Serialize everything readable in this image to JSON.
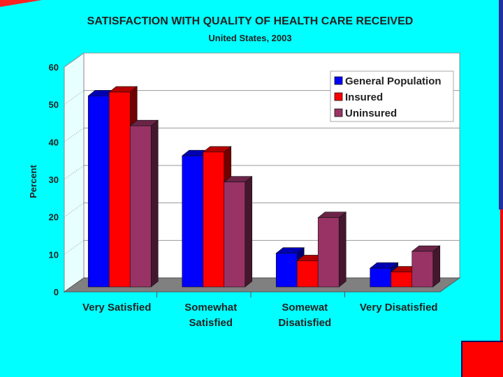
{
  "chart_data": {
    "type": "bar",
    "title": "SATISFACTION WITH QUALITY OF HEALTH CARE RECEIVED",
    "subtitle": "United States, 2003",
    "xlabel": "",
    "ylabel": "Percent",
    "ylim": [
      0,
      60
    ],
    "yticks": [
      "0",
      "10",
      "20",
      "30",
      "40",
      "50",
      "60"
    ],
    "categories": [
      [
        "Very Satisfied"
      ],
      [
        "Somewhat",
        "Satisfied"
      ],
      [
        "Somewat",
        "Disatisfied"
      ],
      [
        "Very Disatisfied"
      ]
    ],
    "series": [
      {
        "name": "General Population",
        "values": [
          51,
          35,
          9,
          5
        ]
      },
      {
        "name": "Insured",
        "values": [
          52,
          36,
          7,
          4
        ]
      },
      {
        "name": "Uninsured",
        "values": [
          43,
          28,
          18.5,
          9.5
        ]
      }
    ],
    "legend_position": "top-right",
    "colors": {
      "General Population": "#0000FF",
      "Insured": "#FF0000",
      "Uninsured": "#993366",
      "background": "#00FFFF",
      "plot": "#FFFFFF",
      "floor": "#808080"
    }
  }
}
